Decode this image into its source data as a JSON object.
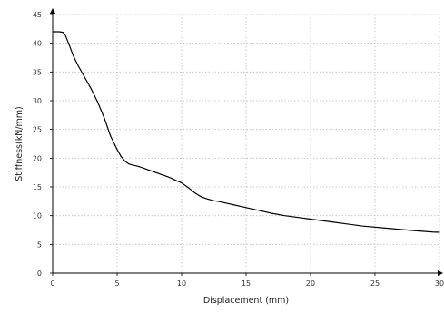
{
  "chart_data": {
    "type": "line",
    "title": "",
    "xlabel": "Displacement (mm)",
    "ylabel": "Stiffness(kN/mm)",
    "xlim": [
      0,
      30
    ],
    "ylim": [
      0,
      45
    ],
    "x_ticks": [
      0,
      5,
      10,
      15,
      20,
      25,
      30
    ],
    "y_ticks": [
      0,
      5,
      10,
      15,
      20,
      25,
      30,
      35,
      40,
      45
    ],
    "grid": true,
    "legend": "none",
    "line_color": "#000000",
    "grid_color": "#bdbdbd",
    "series": [
      {
        "x": [
          0,
          0.5,
          0.8,
          1.0,
          1.3,
          1.6,
          2.0,
          2.5,
          3.0,
          3.5,
          4.0,
          4.5,
          5.0,
          5.3,
          5.6,
          5.9,
          6.2,
          6.6,
          7.0,
          7.5,
          8.0,
          8.5,
          9.0,
          9.5,
          10.0,
          10.5,
          11.0,
          11.5,
          12.0,
          12.5,
          13.0,
          14.0,
          15.0,
          16.0,
          17.0,
          18.0,
          19.0,
          20.0,
          21.0,
          22.0,
          24.0,
          26.0,
          28.0,
          29.5,
          30.0
        ],
        "y": [
          42.0,
          42.0,
          41.9,
          41.3,
          39.6,
          37.8,
          36.0,
          34.0,
          32.0,
          29.7,
          27.0,
          23.8,
          21.5,
          20.3,
          19.5,
          19.0,
          18.8,
          18.6,
          18.3,
          17.9,
          17.5,
          17.1,
          16.7,
          16.2,
          15.7,
          14.9,
          14.0,
          13.3,
          12.9,
          12.6,
          12.4,
          11.9,
          11.4,
          10.9,
          10.4,
          10.0,
          9.7,
          9.4,
          9.1,
          8.8,
          8.2,
          7.8,
          7.4,
          7.15,
          7.1
        ]
      }
    ]
  }
}
